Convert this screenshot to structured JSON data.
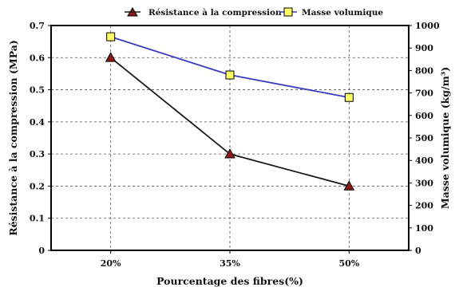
{
  "chart_data": {
    "type": "line",
    "categories": [
      "20%",
      "35%",
      "50%"
    ],
    "xlabel": "Pourcentage des fibres(%)",
    "ylabel_left": "Résistance à la compression (MPa)",
    "ylabel_right": "Masse volumique (kg/m³)",
    "ylim_left": [
      0,
      0.7
    ],
    "yticks_left": [
      "0",
      "0.1",
      "0.2",
      "0.3",
      "0.4",
      "0.5",
      "0.6",
      "0.7"
    ],
    "ylim_right": [
      0,
      1000
    ],
    "yticks_right": [
      "0",
      "100",
      "200",
      "300",
      "400",
      "500",
      "600",
      "700",
      "800",
      "900",
      "1000"
    ],
    "grid": true,
    "legend_position": "top",
    "series": [
      {
        "name": "Résistance à la compression",
        "axis": "left",
        "values": [
          0.6,
          0.3,
          0.2
        ],
        "line_color": "#1a1a1a",
        "marker": "triangle",
        "marker_color": "#8b1a1a"
      },
      {
        "name": "Masse volumique",
        "axis": "right",
        "values": [
          950,
          780,
          680
        ],
        "line_color": "#3b3bbf",
        "marker": "square",
        "marker_color": "#ffff66"
      }
    ]
  }
}
